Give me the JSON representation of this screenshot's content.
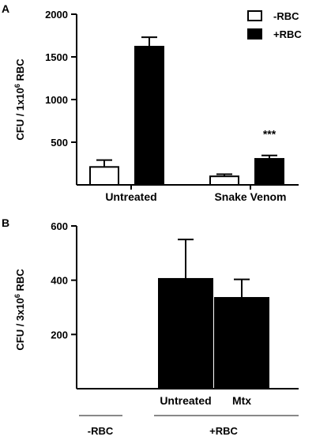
{
  "panels": [
    {
      "panel_letter": "A",
      "legend": [
        {
          "label": "-RBC",
          "fill": "#ffffff"
        },
        {
          "label": "+RBC",
          "fill": "#000000"
        }
      ],
      "annotations": [
        {
          "text": "***",
          "category": "Snake Venom",
          "series": "+RBC"
        }
      ],
      "y_ticks": [
        "500",
        "1000",
        "1500",
        "2000"
      ],
      "x_group_labels": [
        "Untreated",
        "Snake Venom"
      ],
      "y_label_prefix": "CFU / 1x10",
      "y_label_sup": "6",
      "y_label_suffix": " RBC"
    },
    {
      "panel_letter": "B",
      "y_ticks": [
        "200",
        "400",
        "600"
      ],
      "x_group_labels": [
        "Untreated",
        "Mtx"
      ],
      "y_label_prefix": "CFU / 3x10",
      "y_label_sup": "6",
      "y_label_suffix": " RBC",
      "bracket_labels": [
        "-RBC",
        "+RBC"
      ]
    }
  ],
  "chart_data": [
    {
      "type": "bar",
      "categories": [
        "Untreated",
        "Snake Venom"
      ],
      "series": [
        {
          "name": "-RBC",
          "color": "#ffffff",
          "values": [
            210,
            100
          ],
          "errors": [
            80,
            25
          ]
        },
        {
          "name": "+RBC",
          "color": "#000000",
          "values": [
            1620,
            305
          ],
          "errors": [
            110,
            40
          ]
        }
      ],
      "ylim": [
        0,
        2000
      ],
      "yticks": [
        500,
        1000,
        1500,
        2000
      ]
    },
    {
      "type": "bar",
      "categories": [
        "-RBC",
        "Untreated",
        "Mtx"
      ],
      "series": [
        {
          "name": "+RBC",
          "color": "#000000",
          "values": [
            0,
            405,
            335
          ],
          "errors": [
            0,
            145,
            68
          ]
        }
      ],
      "ylim": [
        0,
        600
      ],
      "yticks": [
        200,
        400,
        600
      ]
    }
  ]
}
